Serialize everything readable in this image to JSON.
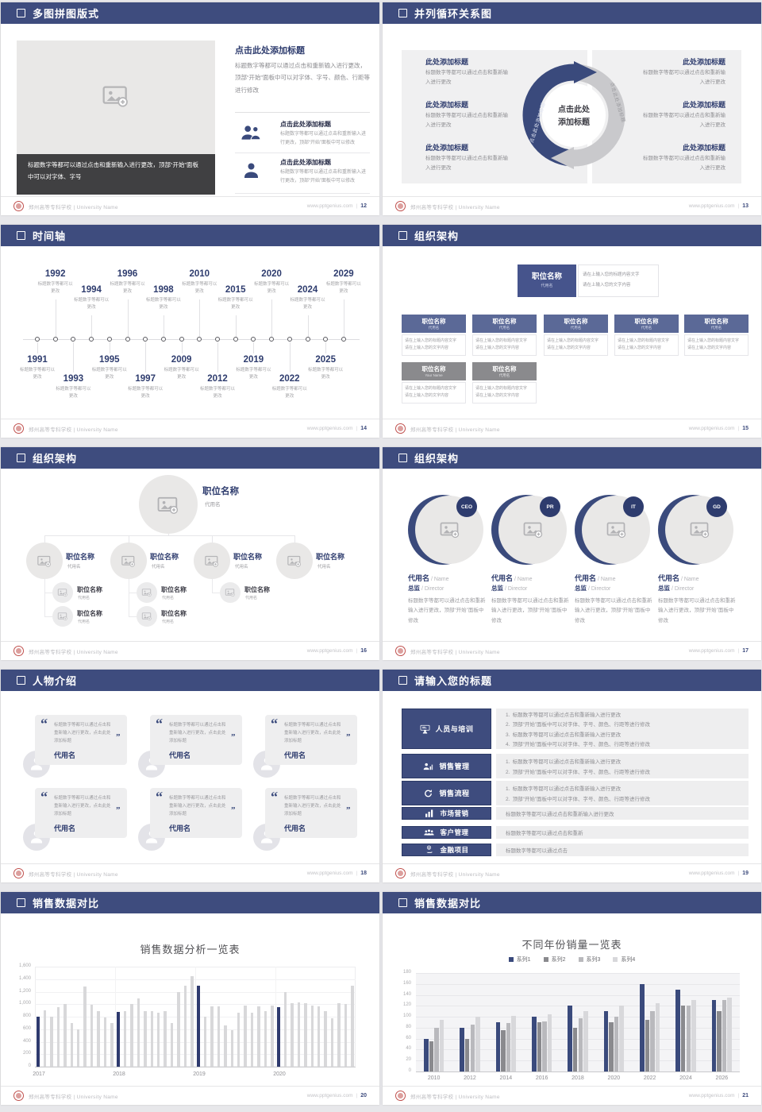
{
  "page": {
    "bg": "#e7e7ea",
    "header_color": "#3e4c7e",
    "accent_navy": "#2e3c6e",
    "light_navy_box": "#5b6997",
    "dark_navy_box": "#46548c",
    "gray_box": "#8a8a8d",
    "panel_gray": "#eeeeef",
    "bar_gray": "#d8d8da",
    "bar_navy": "#2e3a6e"
  },
  "footer": {
    "school_full": "郑州高等专科学校 | University Name",
    "site": "www.pptgenius.com",
    "sep": "|"
  },
  "slides": [
    {
      "page": "12",
      "title": "多图拼图版式",
      "type": "puzzle",
      "image_icon": "add-image-icon",
      "caption": "标题数字等都可以通过点击和重新输入进行更改，顶部“开始”面板中可以对字体、字号",
      "heading": "点击此处添加标题",
      "paragraph": "标题数字等都可以通过点击和重新输入进行更改，顶部“开始”面板中可以对字体、字号、颜色、行距等进行修改",
      "items": [
        {
          "icon": "people-icon",
          "heading": "点击此处添加标题",
          "text": "标题数字等都可以通过点击和重新输入进行更改，顶部“开始”面板中可以修改"
        },
        {
          "icon": "person-icon",
          "heading": "点击此处添加标题",
          "text": "标题数字等都可以通过点击和重新输入进行更改，顶部“开始”面板中可以修改"
        }
      ]
    },
    {
      "page": "13",
      "title": "并列循环关系图",
      "type": "cycle",
      "center_line1": "点击此处",
      "center_line2": "添加标题",
      "arc_label_left": "点击此处添加标题",
      "arc_label_right": "点击此处添加标题",
      "left_items": [
        {
          "heading": "此处添加标题",
          "text": "标题数字等都可以通过点击和重新输入进行更改"
        },
        {
          "heading": "此处添加标题",
          "text": "标题数字等都可以通过点击和重新输入进行更改"
        },
        {
          "heading": "此处添加标题",
          "text": "标题数字等都可以通过点击和重新输入进行更改"
        }
      ],
      "right_items": [
        {
          "heading": "此处添加标题",
          "text": "标题数字等都可以通过点击和重新输入进行更改"
        },
        {
          "heading": "此处添加标题",
          "text": "标题数字等都可以通过点击和重新输入进行更改"
        },
        {
          "heading": "此处添加标题",
          "text": "标题数字等都可以通过点击和重新输入进行更改"
        }
      ]
    },
    {
      "page": "14",
      "title": "时间轴",
      "type": "timeline",
      "caption": "标题数字等都可以更改",
      "top_years": [
        "1992",
        "1994",
        "1996",
        "1998",
        "2010",
        "2015",
        "2020",
        "2024",
        "2029"
      ],
      "bottom_years": [
        "1991",
        "1993",
        "1995",
        "1997",
        "2009",
        "2012",
        "2019",
        "2022",
        "2025"
      ]
    },
    {
      "page": "15",
      "title": "组织架构",
      "type": "orgboxes",
      "box_title": "职位名称",
      "box_sub": "代用名",
      "note_lines": [
        "请在上输入您的标题内容文字",
        "请在上输入您的文字内容"
      ],
      "row1_count": 5,
      "row2_subs": [
        "Your Name",
        "代用名"
      ]
    },
    {
      "page": "16",
      "title": "组织架构",
      "type": "orgtree",
      "box_title": "职位名称",
      "box_sub": "代用名",
      "children_counts": [
        2,
        2,
        1,
        0
      ]
    },
    {
      "page": "17",
      "title": "组织架构",
      "type": "profiles",
      "badges": [
        "CEO",
        "PR",
        "IT",
        "GD"
      ],
      "name": "代用名",
      "name_en": "Name",
      "role": "总监",
      "role_en": "Director",
      "text": "标题数字等都可以通过点击和重新输入进行更改，顶部“开始”面板中修改"
    },
    {
      "page": "18",
      "title": "人物介绍",
      "type": "persons",
      "count": 6,
      "name": "代用名",
      "text": "标题数字等都可以通过点击和重新输入进行更改，点击此处添加标题"
    },
    {
      "page": "19",
      "title": "请输入您的标题",
      "type": "agenda",
      "rows": [
        {
          "icon": "training-icon",
          "label": "人员与培训",
          "numbered": true,
          "lines": [
            "标题数字等都可以通过点击和重新输入进行更改",
            "顶部“开始”面板中可以对字体、字号、颜色、行距等进行修改",
            "标题数字等都可以通过点击和重新输入进行更改",
            "顶部“开始”面板中可以对字体、字号、颜色、行距等进行修改"
          ]
        },
        {
          "icon": "sales-person-icon",
          "label": "销售管理",
          "numbered": true,
          "lines": [
            "标题数字等都可以通过点击和重新输入进行更改",
            "顶部“开始”面板中可以对字体、字号、颜色、行距等进行修改"
          ]
        },
        {
          "icon": "cycle-icon",
          "label": "销售流程",
          "numbered": true,
          "lines": [
            "标题数字等都可以通过点击和重新输入进行更改",
            "顶部“开始”面板中可以对字体、字号、颜色、行距等进行修改"
          ]
        },
        {
          "icon": "bar-chart-icon",
          "label": "市场营销",
          "numbered": false,
          "lines": [
            "标题数字等都可以通过点击和重新输入进行更改"
          ]
        },
        {
          "icon": "customers-icon",
          "label": "客户管理",
          "numbered": false,
          "lines": [
            "标题数字等都可以通过点击和重新"
          ]
        },
        {
          "icon": "finance-icon",
          "label": "金融项目",
          "numbered": false,
          "lines": [
            "标题数字等都可以通过点击"
          ]
        }
      ]
    },
    {
      "page": "20",
      "title": "销售数据对比",
      "type": "chart",
      "chart": 0
    },
    {
      "page": "21",
      "title": "销售数据对比",
      "type": "chart",
      "chart": 1
    }
  ],
  "chart_data": [
    {
      "type": "bar",
      "title": "销售数据分析一览表",
      "xlabel": "",
      "ylabel": "",
      "ylim": [
        0,
        1600
      ],
      "ytick_step": 200,
      "grid": true,
      "legend_position": "none",
      "categories": [
        "2017",
        "2018",
        "2019",
        "2020"
      ],
      "bars_per_group": 12,
      "bar_color": "#d8d8da",
      "highlight_color": "#2e3a6e",
      "highlight_indices": [
        0,
        12,
        24,
        36
      ],
      "values": [
        800,
        900,
        800,
        950,
        1010,
        700,
        600,
        1280,
        990,
        890,
        790,
        700,
        880,
        890,
        1000,
        1090,
        890,
        890,
        870,
        890,
        700,
        1190,
        1300,
        1450,
        1300,
        800,
        960,
        970,
        660,
        580,
        870,
        980,
        860,
        960,
        890,
        980,
        950,
        1190,
        1020,
        1030,
        1020,
        980,
        970,
        890,
        780,
        1020,
        1000,
        1300
      ]
    },
    {
      "type": "bar",
      "title": "不同年份销量一览表",
      "xlabel": "",
      "ylabel": "",
      "ylim": [
        0,
        180
      ],
      "ytick_step": 20,
      "grid": true,
      "legend_position": "top",
      "categories": [
        "2010",
        "2012",
        "2014",
        "2016",
        "2018",
        "2020",
        "2022",
        "2024",
        "2026"
      ],
      "series": [
        {
          "name": "系列1",
          "color": "#3a4a7c",
          "values": [
            60,
            80,
            90,
            100,
            120,
            110,
            160,
            150,
            130
          ]
        },
        {
          "name": "系列2",
          "color": "#8a8a8e",
          "values": [
            55,
            60,
            75,
            90,
            80,
            90,
            95,
            120,
            110
          ]
        },
        {
          "name": "系列3",
          "color": "#b9b9bd",
          "values": [
            80,
            85,
            88,
            92,
            98,
            100,
            110,
            120,
            130
          ]
        },
        {
          "name": "系列4",
          "color": "#d8d8db",
          "values": [
            95,
            100,
            102,
            105,
            110,
            120,
            125,
            130,
            135
          ]
        }
      ]
    }
  ]
}
